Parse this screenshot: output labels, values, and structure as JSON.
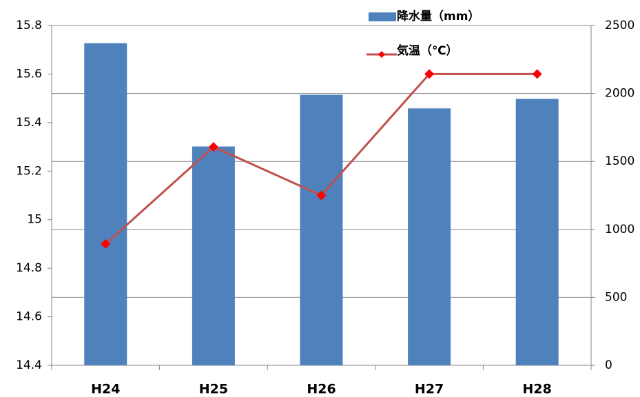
{
  "chart_data": {
    "type": "bar_line",
    "categories": [
      "H24",
      "H25",
      "H26",
      "H27",
      "H28"
    ],
    "series": [
      {
        "name": "降水量（mm）",
        "type": "bar",
        "axis": "y2",
        "color": "#4f81bd",
        "values": [
          2370,
          1610,
          1990,
          1890,
          1960
        ]
      },
      {
        "name": "気温（℃）",
        "type": "line",
        "axis": "y",
        "color": "#c0504d",
        "marker_color": "#ff0000",
        "values": [
          14.9,
          15.3,
          15.1,
          15.6,
          15.6
        ]
      }
    ],
    "ylim": [
      14.4,
      15.8
    ],
    "yticks": [
      14.4,
      14.6,
      14.8,
      15,
      15.2,
      15.4,
      15.6,
      15.8
    ],
    "y2lim": [
      0,
      2500
    ],
    "y2ticks": [
      0,
      500,
      1000,
      1500,
      2000,
      2500
    ],
    "grid": true,
    "legend": "top-right"
  }
}
